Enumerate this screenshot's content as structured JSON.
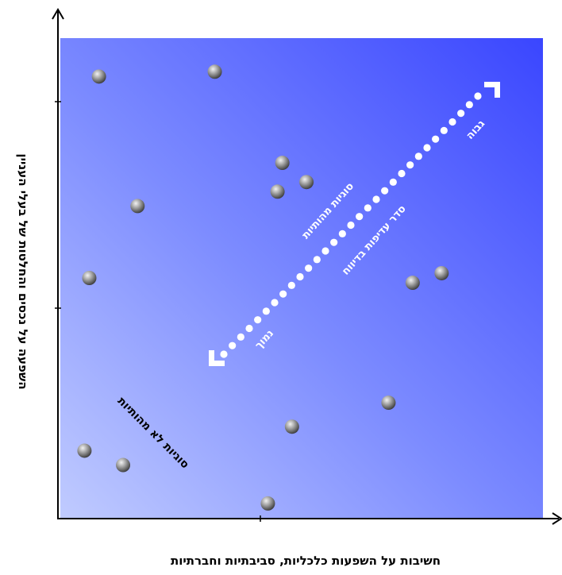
{
  "chart_data": {
    "type": "scatter",
    "title": "",
    "xlabel": "חשיבות על השפעות כלכליות, סביבתיות וחברתיות",
    "ylabel": "השפעה על נכסים והחלטות של בעלי העניין",
    "xlim": [
      0,
      10
    ],
    "ylim": [
      0,
      10
    ],
    "grid": false,
    "colors": {
      "plot_bg_high": "#3e4bff",
      "plot_bg_low": "#b8c4ff",
      "point": "#8e8e8e",
      "arrow": "#ffffff"
    },
    "points": [
      {
        "x": 0.8,
        "y": 9.2
      },
      {
        "x": 3.2,
        "y": 9.3
      },
      {
        "x": 4.6,
        "y": 7.4
      },
      {
        "x": 5.1,
        "y": 7.0
      },
      {
        "x": 4.5,
        "y": 6.8
      },
      {
        "x": 1.6,
        "y": 6.5
      },
      {
        "x": 0.6,
        "y": 5.0
      },
      {
        "x": 7.3,
        "y": 4.9
      },
      {
        "x": 7.9,
        "y": 5.1
      },
      {
        "x": 6.8,
        "y": 2.4
      },
      {
        "x": 4.8,
        "y": 1.9
      },
      {
        "x": 0.5,
        "y": 1.4
      },
      {
        "x": 1.3,
        "y": 1.1
      },
      {
        "x": 4.3,
        "y": 0.3
      }
    ],
    "annotations": {
      "material_issues": "סוגיות מהותיות",
      "priority_order": "סדר עדיפות בדיווח",
      "high": "גבוה",
      "low": "נמוך",
      "non_material_issues": "סוגיות לא מהותיות"
    }
  }
}
